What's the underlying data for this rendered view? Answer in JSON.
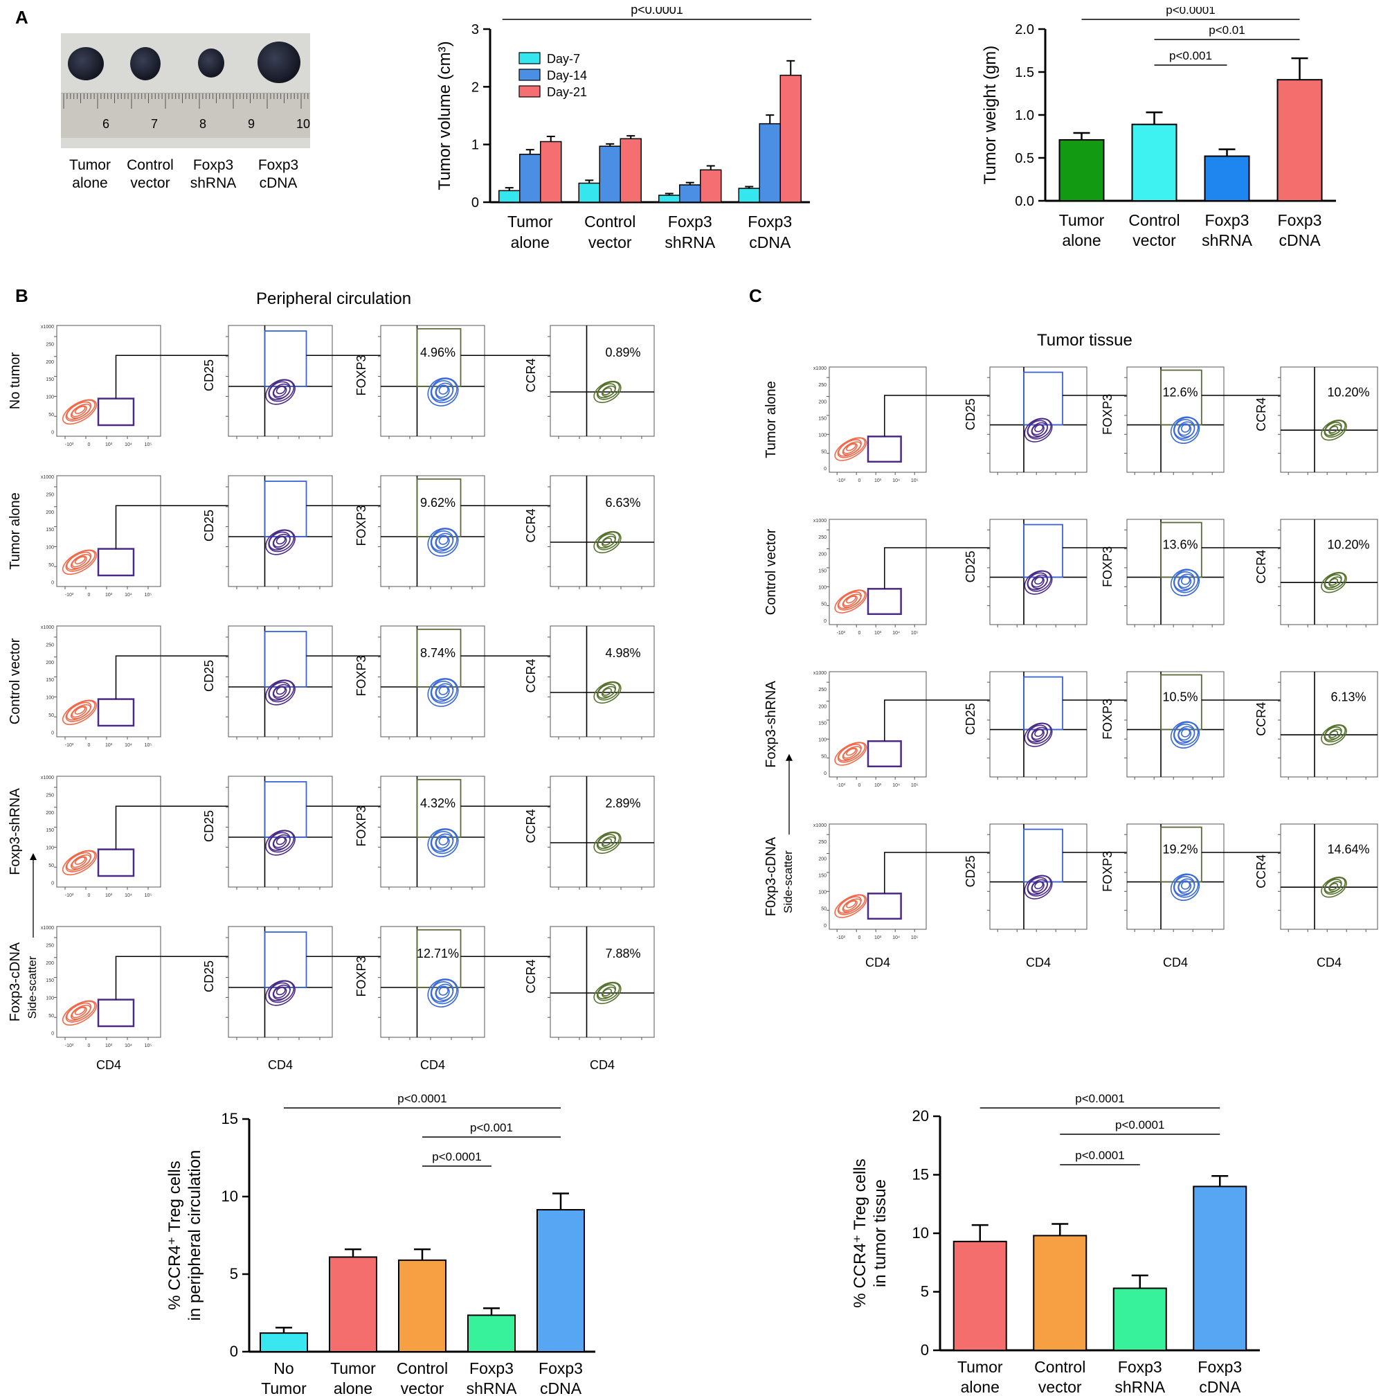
{
  "panels": {
    "a": "A",
    "b": "B",
    "c": "C"
  },
  "photo_labels": [
    "Tumor\nalone",
    "Control\nvector",
    "Foxp3\nshRNA",
    "Foxp3\ncDNA"
  ],
  "ruler_numbers": [
    "6",
    "7",
    "8",
    "9",
    "10"
  ],
  "section_b_title": "Peripheral circulation",
  "section_c_title": "Tumor tissue",
  "flow": {
    "b_rows": [
      {
        "label": "No tumor",
        "foxp3": "4.96%",
        "ccr4": "0.89%"
      },
      {
        "label": "Tumor alone",
        "foxp3": "9.62%",
        "ccr4": "6.63%"
      },
      {
        "label": "Control vector",
        "foxp3": "8.74%",
        "ccr4": "4.98%"
      },
      {
        "label": "Foxp3-shRNA",
        "foxp3": "4.32%",
        "ccr4": "2.89%"
      },
      {
        "label": "Foxp3-cDNA",
        "foxp3": "12.71%",
        "ccr4": "7.88%"
      }
    ],
    "c_rows": [
      {
        "label": "Tumor alone",
        "foxp3": "12.6%",
        "ccr4": "10.20%"
      },
      {
        "label": "Control vector",
        "foxp3": "13.6%",
        "ccr4": "10.20%"
      },
      {
        "label": "Foxp3-shRNA",
        "foxp3": "10.5%",
        "ccr4": "6.13%"
      },
      {
        "label": "F0xp3-cDNA",
        "foxp3": "19.2%",
        "ccr4": "14.64%"
      }
    ],
    "y_labels": [
      "CD25",
      "FOXP3",
      "CCR4"
    ],
    "x_label": "CD4",
    "side_scatter": "Side-scatter",
    "ss_ticks": [
      "x1000",
      "250",
      "200",
      "150",
      "100",
      "50",
      "0"
    ],
    "ss_x_ticks": [
      "-10³",
      "0",
      "10³",
      "10⁴",
      "10⁵"
    ]
  },
  "chart_data": [
    {
      "id": "tumor-volume",
      "type": "bar",
      "categories": [
        "Tumor\nalone",
        "Control\nvector",
        "Foxp3\nshRNA",
        "Foxp3\ncDNA"
      ],
      "series": [
        {
          "name": "Day-7",
          "color": "#36e6ee",
          "values": [
            0.2,
            0.33,
            0.12,
            0.24
          ],
          "errors": [
            0.05,
            0.05,
            0.03,
            0.03
          ]
        },
        {
          "name": "Day-14",
          "color": "#4b8fe4",
          "values": [
            0.83,
            0.97,
            0.3,
            1.36
          ],
          "errors": [
            0.08,
            0.04,
            0.04,
            0.15
          ]
        },
        {
          "name": "Day-21",
          "color": "#f56f72",
          "values": [
            1.05,
            1.1,
            0.56,
            2.2
          ],
          "errors": [
            0.09,
            0.05,
            0.07,
            0.25
          ]
        }
      ],
      "ylim": [
        0,
        3
      ],
      "yticks": [
        "0",
        "1",
        "2",
        "3"
      ],
      "ylabel": "Tumor volume (cm³)",
      "annotations": [
        {
          "text": "p<0.0001",
          "from": 0,
          "to": 3
        }
      ]
    },
    {
      "id": "tumor-weight",
      "type": "bar",
      "categories": [
        "Tumor\nalone",
        "Control\nvector",
        "Foxp3\nshRNA",
        "Foxp3\ncDNA"
      ],
      "values": [
        0.71,
        0.89,
        0.52,
        1.41
      ],
      "errors": [
        0.08,
        0.14,
        0.08,
        0.25
      ],
      "colors": [
        "#139a13",
        "#3ef2f2",
        "#1f86f0",
        "#f56e6e"
      ],
      "ylim": [
        0,
        2
      ],
      "yticks": [
        "0.0",
        "0.5",
        "1.0",
        "1.5",
        "2.0"
      ],
      "ylabel": "Tumor weight (gm)",
      "annotations": [
        {
          "text": "p<0.0001",
          "from": 0,
          "to": 3
        },
        {
          "text": "p<0.01",
          "from": 1,
          "to": 3
        },
        {
          "text": "p<0.001",
          "from": 1,
          "to": 2
        }
      ]
    },
    {
      "id": "ccr4-peripheral",
      "type": "bar",
      "categories": [
        "No\nTumor",
        "Tumor\nalone",
        "Control\nvector",
        "Foxp3\nshRNA",
        "Foxp3\ncDNA"
      ],
      "values": [
        1.2,
        6.1,
        5.9,
        2.35,
        9.15
      ],
      "errors": [
        0.35,
        0.5,
        0.7,
        0.45,
        1.05
      ],
      "colors": [
        "#3ae6ef",
        "#f56e6e",
        "#f7a043",
        "#37f29a",
        "#56a6f4"
      ],
      "ylim": [
        0,
        15
      ],
      "yticks": [
        "0",
        "5",
        "10",
        "15"
      ],
      "ylabel": "% CCR4⁺ Treg cells\nin peripheral circulation",
      "annotations": [
        {
          "text": "p<0.0001",
          "from": 0,
          "to": 4
        },
        {
          "text": "p<0.001",
          "from": 2,
          "to": 4
        },
        {
          "text": "p<0.0001",
          "from": 2,
          "to": 3
        }
      ]
    },
    {
      "id": "ccr4-tumor",
      "type": "bar",
      "categories": [
        "Tumor\nalone",
        "Control\nvector",
        "Foxp3\nshRNA",
        "Foxp3\ncDNA"
      ],
      "values": [
        9.3,
        9.8,
        5.3,
        14.0
      ],
      "errors": [
        1.4,
        1.0,
        1.1,
        0.9
      ],
      "colors": [
        "#f56e6e",
        "#f7a043",
        "#37f29a",
        "#56a6f4"
      ],
      "ylim": [
        0,
        20
      ],
      "yticks": [
        "0",
        "5",
        "10",
        "15",
        "20"
      ],
      "ylabel": "% CCR4⁺ Treg cells\nin tumor tissue",
      "annotations": [
        {
          "text": "p<0.0001",
          "from": 0,
          "to": 3
        },
        {
          "text": "p<0.0001",
          "from": 1,
          "to": 3
        },
        {
          "text": "p<0.0001",
          "from": 1,
          "to": 2
        }
      ]
    }
  ]
}
